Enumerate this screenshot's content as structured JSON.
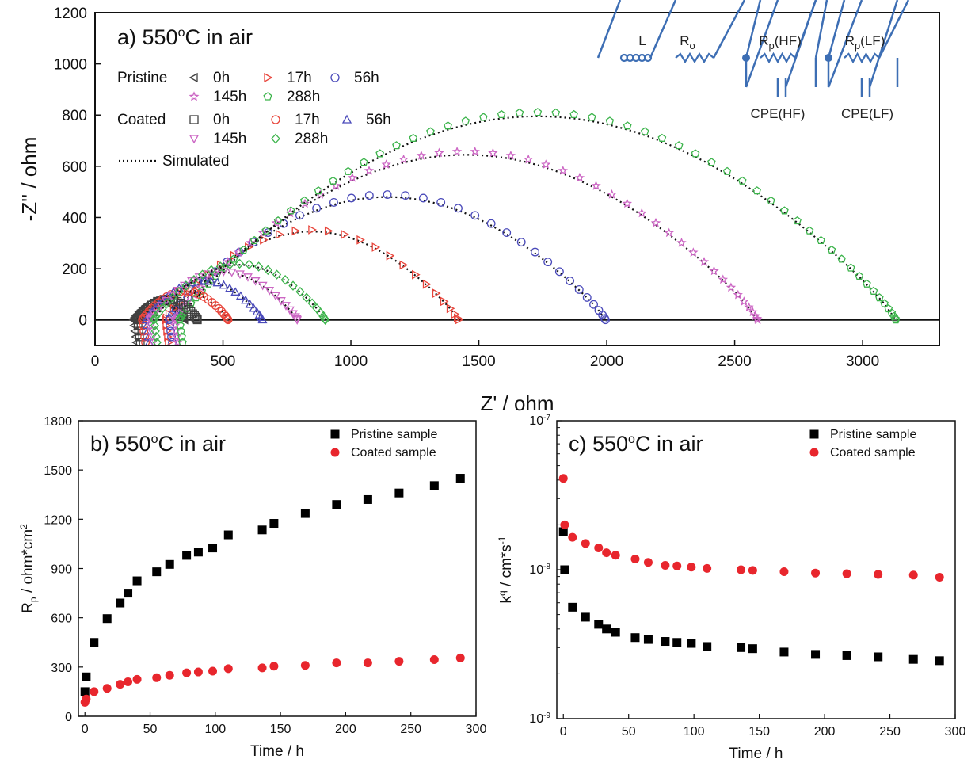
{
  "chart_data": [
    {
      "panel": "a",
      "type": "scatter",
      "title": "a)  550°C in air",
      "title_parts": {
        "letter": "a)",
        "temp": "550",
        "sup": "o",
        "rest": "C in air"
      },
      "xlabel": "Z' / ohm",
      "ylabel": "-Z'' / ohm",
      "xlim": [
        0,
        3300
      ],
      "ylim": [
        -100,
        1200
      ],
      "xticks": [
        0,
        500,
        1000,
        1500,
        2000,
        2500,
        3000
      ],
      "yticks": [
        0,
        200,
        400,
        600,
        800,
        1000,
        1200
      ],
      "zero_line": true,
      "legend_location": "top-left",
      "legend": {
        "pristine_label": "Pristine",
        "coated_label": "Coated",
        "simulated_label": "Simulated"
      },
      "inset_circuit": {
        "labels": [
          "L",
          "R",
          "o",
          "R",
          "p",
          "(HF)",
          "R",
          "p",
          "(LF)",
          "CPE(HF)",
          "CPE(LF)"
        ],
        "line_color": "#3d6eb4"
      },
      "series": [
        {
          "group": "Pristine",
          "name": "0h",
          "marker": "triangle-left",
          "color": "#404040",
          "x0": 150,
          "x1": 350,
          "h": 75,
          "low_tail": [
            150,
            -100
          ]
        },
        {
          "group": "Pristine",
          "name": "17h",
          "marker": "triangle-right",
          "color": "#e8443a",
          "x0": 275,
          "x1": 1420,
          "h": 345,
          "peak_x": 1000
        },
        {
          "group": "Pristine",
          "name": "56h",
          "marker": "circle",
          "color": "#4a4aba",
          "x0": 290,
          "x1": 1995,
          "h": 480,
          "peak_x": 1320
        },
        {
          "group": "Pristine",
          "name": "145h",
          "marker": "star",
          "color": "#cc66c4",
          "x0": 310,
          "x1": 2590,
          "h": 645,
          "peak_x": 1720
        },
        {
          "group": "Pristine",
          "name": "288h",
          "marker": "pentagon",
          "color": "#3cb44b",
          "x0": 330,
          "x1": 3130,
          "h": 795,
          "peak_x": 2000
        },
        {
          "group": "Coated",
          "name": "0h",
          "marker": "square",
          "color": "#404040",
          "x0": 165,
          "x1": 400,
          "h": 80
        },
        {
          "group": "Coated",
          "name": "17h",
          "marker": "circle",
          "color": "#e8443a",
          "x0": 185,
          "x1": 520,
          "h": 110
        },
        {
          "group": "Coated",
          "name": "56h",
          "marker": "triangle-up",
          "color": "#4a4aba",
          "x0": 200,
          "x1": 655,
          "h": 150
        },
        {
          "group": "Coated",
          "name": "145h",
          "marker": "triangle-down",
          "color": "#cc66c4",
          "x0": 215,
          "x1": 790,
          "h": 185
        },
        {
          "group": "Coated",
          "name": "288h",
          "marker": "diamond",
          "color": "#3cb44b",
          "x0": 230,
          "x1": 900,
          "h": 215
        }
      ]
    },
    {
      "panel": "b",
      "type": "scatter",
      "title": "b)  550°C in air",
      "title_parts": {
        "letter": "b)",
        "temp": "550",
        "sup": "o",
        "rest": "C in air"
      },
      "xlabel": "Time / h",
      "ylabel_parts": {
        "main": "R",
        "sub": "p",
        "rest": " / ohm*cm",
        "sup": "2"
      },
      "xlim": [
        -5,
        300
      ],
      "ylim": [
        0,
        1800
      ],
      "xticks": [
        0,
        50,
        100,
        150,
        200,
        250,
        300
      ],
      "yticks": [
        0,
        300,
        600,
        900,
        1200,
        1500,
        1800
      ],
      "legend_location": "top-right",
      "series": [
        {
          "name": "Pristine sample",
          "marker": "square",
          "color": "#000000",
          "x": [
            0,
            1,
            7,
            17,
            27,
            33,
            40,
            55,
            65,
            78,
            87,
            98,
            110,
            136,
            145,
            169,
            193,
            217,
            241,
            268,
            288
          ],
          "y": [
            150,
            240,
            450,
            595,
            690,
            750,
            825,
            880,
            925,
            980,
            1000,
            1025,
            1105,
            1135,
            1175,
            1235,
            1290,
            1320,
            1360,
            1405,
            1450
          ]
        },
        {
          "name": "Coated sample",
          "marker": "circle",
          "color": "#e8262d",
          "x": [
            0,
            1,
            7,
            17,
            27,
            33,
            40,
            55,
            65,
            78,
            87,
            98,
            110,
            136,
            145,
            169,
            193,
            217,
            241,
            268,
            288
          ],
          "y": [
            85,
            105,
            150,
            170,
            195,
            210,
            225,
            235,
            250,
            265,
            270,
            275,
            290,
            295,
            305,
            310,
            325,
            325,
            335,
            345,
            355
          ]
        }
      ]
    },
    {
      "panel": "c",
      "type": "scatter",
      "title": "c)  550°C in air",
      "title_parts": {
        "letter": "c)",
        "temp": "550",
        "sup": "o",
        "rest": "C in air"
      },
      "xlabel": "Time / h",
      "ylabel_parts": {
        "main": "k",
        "sup": "q",
        "rest": " / cm*s",
        "sup2": "-1"
      },
      "xlim": [
        -5,
        300
      ],
      "ylim": [
        1e-09,
        1e-07
      ],
      "yscale": "log",
      "xticks": [
        0,
        50,
        100,
        150,
        200,
        250,
        300
      ],
      "yticks": [
        {
          "base": "10",
          "exp": "-9"
        },
        {
          "base": "10",
          "exp": "-8"
        },
        {
          "base": "10",
          "exp": "-7"
        }
      ],
      "legend_location": "top-right",
      "series": [
        {
          "name": "Pristine sample",
          "marker": "square",
          "color": "#000000",
          "x": [
            0,
            1,
            7,
            17,
            27,
            33,
            40,
            55,
            65,
            78,
            87,
            98,
            110,
            136,
            145,
            169,
            193,
            217,
            241,
            268,
            288
          ],
          "y": [
            1.8e-08,
            1e-08,
            5.6e-09,
            4.8e-09,
            4.3e-09,
            4e-09,
            3.8e-09,
            3.5e-09,
            3.4e-09,
            3.3e-09,
            3.25e-09,
            3.2e-09,
            3.05e-09,
            3e-09,
            2.95e-09,
            2.8e-09,
            2.7e-09,
            2.65e-09,
            2.6e-09,
            2.5e-09,
            2.45e-09
          ]
        },
        {
          "name": "Coated sample",
          "marker": "circle",
          "color": "#e8262d",
          "x": [
            0,
            1,
            7,
            17,
            27,
            33,
            40,
            55,
            65,
            78,
            87,
            98,
            110,
            136,
            145,
            169,
            193,
            217,
            241,
            268,
            288
          ],
          "y": [
            4.1e-08,
            2e-08,
            1.65e-08,
            1.5e-08,
            1.4e-08,
            1.3e-08,
            1.25e-08,
            1.18e-08,
            1.12e-08,
            1.07e-08,
            1.06e-08,
            1.04e-08,
            1.02e-08,
            1e-08,
            9.9e-09,
            9.7e-09,
            9.5e-09,
            9.4e-09,
            9.3e-09,
            9.2e-09,
            8.9e-09
          ]
        }
      ]
    }
  ]
}
